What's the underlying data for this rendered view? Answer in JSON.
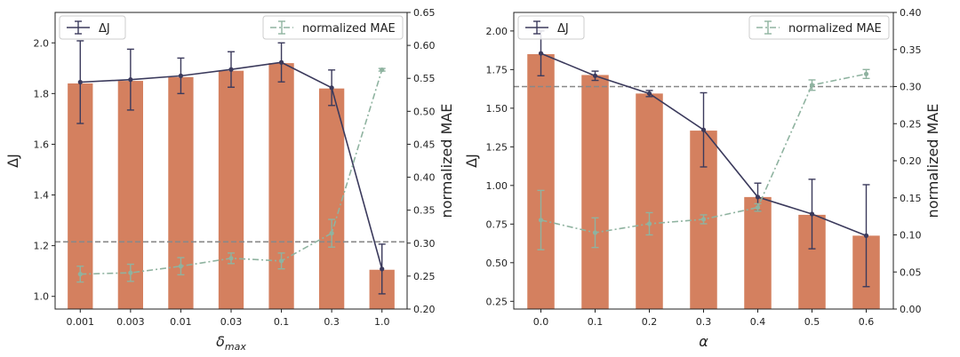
{
  "colors": {
    "bar": "#d4805f",
    "delta_line": "#3b3a5c",
    "mae_line": "#8fb3a0",
    "threshold": "#888888",
    "axis": "#222222"
  },
  "chart_data": [
    {
      "type": "bar",
      "xlabel": "δmax",
      "xlabel_main": "δ",
      "xlabel_sub": "max",
      "ylabel": "ΔJ",
      "ylabel_right": "normalized MAE",
      "categories": [
        "0.001",
        "0.003",
        "0.01",
        "0.03",
        "0.1",
        "0.3",
        "1.0"
      ],
      "ylim": [
        0.95,
        2.12
      ],
      "ylim_right": [
        0.2,
        0.65
      ],
      "yticks": [
        1.0,
        1.2,
        1.4,
        1.6,
        1.8,
        2.0
      ],
      "ytick_labels": [
        "1.0",
        "1.2",
        "1.4",
        "1.6",
        "1.8",
        "2.0"
      ],
      "yticks_right": [
        0.2,
        0.25,
        0.3,
        0.35,
        0.4,
        0.45,
        0.5,
        0.55,
        0.6,
        0.65
      ],
      "ytick_labels_right": [
        "0.20",
        "0.25",
        "0.30",
        "0.35",
        "0.40",
        "0.45",
        "0.50",
        "0.55",
        "0.60",
        "0.65"
      ],
      "bars": [
        1.84,
        1.85,
        1.865,
        1.89,
        1.92,
        1.82,
        1.105
      ],
      "threshold_right": 0.302,
      "legend_placement": [
        "top-left",
        "top-right"
      ],
      "series": [
        {
          "name": "ΔJ",
          "axis": "left",
          "values": [
            1.845,
            1.855,
            1.87,
            1.895,
            1.923,
            1.823,
            1.108
          ],
          "err": [
            0.163,
            0.12,
            0.07,
            0.07,
            0.077,
            0.07,
            0.098
          ]
        },
        {
          "name": "normalized MAE",
          "axis": "right",
          "values": [
            0.253,
            0.255,
            0.265,
            0.277,
            0.273,
            0.315,
            0.563
          ],
          "err": [
            0.012,
            0.013,
            0.013,
            0.008,
            0.012,
            0.021,
            0.002
          ]
        }
      ]
    },
    {
      "type": "bar",
      "xlabel": "α",
      "xlabel_main": "α",
      "xlabel_sub": "",
      "ylabel": "ΔJ",
      "ylabel_right": "normalized MAE",
      "categories": [
        "0.0",
        "0.1",
        "0.2",
        "0.3",
        "0.4",
        "0.5",
        "0.6"
      ],
      "ylim": [
        0.2,
        2.12
      ],
      "ylim_right": [
        0.0,
        0.4
      ],
      "yticks": [
        0.25,
        0.5,
        0.75,
        1.0,
        1.25,
        1.5,
        1.75,
        2.0
      ],
      "ytick_labels": [
        "0.25",
        "0.50",
        "0.75",
        "1.00",
        "1.25",
        "1.50",
        "1.75",
        "2.00"
      ],
      "yticks_right": [
        0.0,
        0.05,
        0.1,
        0.15,
        0.2,
        0.25,
        0.3,
        0.35,
        0.4
      ],
      "ytick_labels_right": [
        "0.00",
        "0.05",
        "0.10",
        "0.15",
        "0.20",
        "0.25",
        "0.30",
        "0.35",
        "0.40"
      ],
      "bars": [
        1.85,
        1.715,
        1.595,
        1.355,
        0.925,
        0.81,
        0.675
      ],
      "threshold_right": 0.3,
      "legend_placement": [
        "top-left",
        "top-right"
      ],
      "series": [
        {
          "name": "ΔJ",
          "axis": "left",
          "values": [
            1.855,
            1.71,
            1.595,
            1.36,
            0.925,
            0.815,
            0.675
          ],
          "err": [
            0.145,
            0.03,
            0.02,
            0.24,
            0.09,
            0.225,
            0.33
          ]
        },
        {
          "name": "normalized MAE",
          "axis": "right",
          "values": [
            0.12,
            0.103,
            0.115,
            0.121,
            0.137,
            0.302,
            0.317
          ],
          "err": [
            0.04,
            0.02,
            0.015,
            0.006,
            0.005,
            0.007,
            0.006
          ]
        }
      ]
    }
  ]
}
